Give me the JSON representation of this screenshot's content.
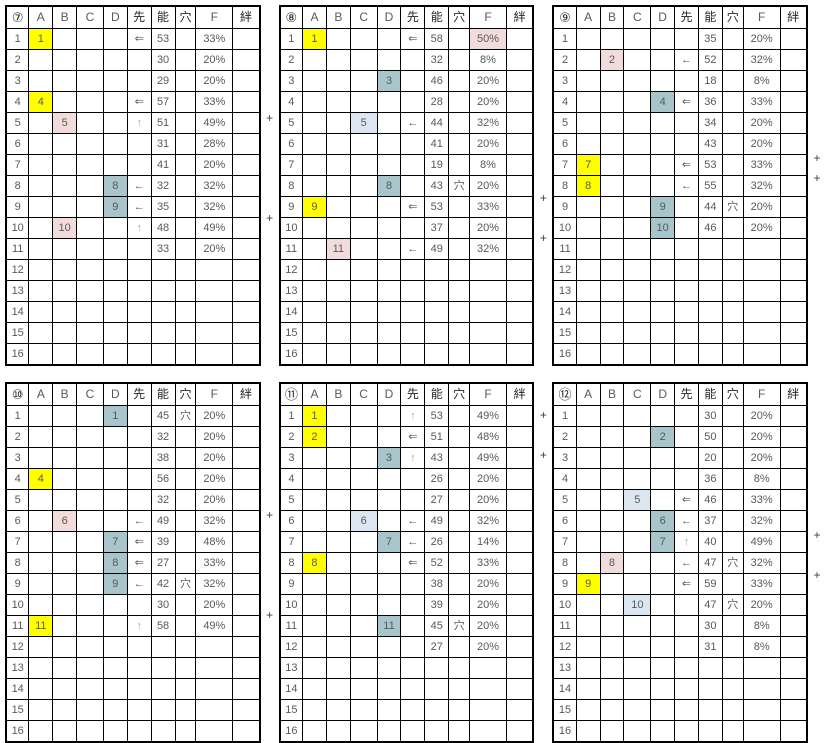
{
  "plus_label": "+",
  "column_headers": [
    "A",
    "B",
    "C",
    "D",
    "先",
    "能",
    "穴",
    "F",
    "絆"
  ],
  "row_count": 16,
  "colors": {
    "highlight_yellow": "#ffff00",
    "highlight_pink": "#f2dcdb",
    "highlight_teal": "#a7c5ca",
    "highlight_blue": "#dce6f1",
    "arrow_gray": "#a6a6a6",
    "ana_gray": "#808080",
    "text_gray": "#595959",
    "border": "#000000"
  },
  "tables": [
    {
      "label": "⑦",
      "rows": [
        {
          "n": 1,
          "col": "A",
          "val": "1",
          "bg": "yellow",
          "sen": "⇐",
          "nou": "53",
          "f": "33%"
        },
        {
          "n": 2,
          "nou": "30",
          "f": "20%"
        },
        {
          "n": 3,
          "nou": "29",
          "f": "20%"
        },
        {
          "n": 4,
          "col": "A",
          "val": "4",
          "bg": "yellow",
          "sen": "⇐",
          "nou": "57",
          "f": "33%"
        },
        {
          "n": 5,
          "col": "B",
          "val": "5",
          "bg": "pink",
          "sen": "↑",
          "nou": "51",
          "f": "49%",
          "plus": true
        },
        {
          "n": 6,
          "nou": "31",
          "f": "28%"
        },
        {
          "n": 7,
          "nou": "41",
          "f": "20%"
        },
        {
          "n": 8,
          "col": "D",
          "val": "8",
          "bg": "teal",
          "sen": "←",
          "nou": "32",
          "f": "32%"
        },
        {
          "n": 9,
          "col": "D",
          "val": "9",
          "bg": "teal",
          "sen": "←",
          "nou": "35",
          "f": "32%"
        },
        {
          "n": 10,
          "col": "B",
          "val": "10",
          "bg": "pink",
          "sen": "↑",
          "nou": "48",
          "f": "49%",
          "plus": true
        },
        {
          "n": 11,
          "nou": "33",
          "f": "20%"
        },
        {
          "n": 12
        },
        {
          "n": 13
        },
        {
          "n": 14
        },
        {
          "n": 15
        },
        {
          "n": 16
        }
      ]
    },
    {
      "label": "⑧",
      "rows": [
        {
          "n": 1,
          "col": "A",
          "val": "1",
          "bg": "yellow",
          "sen": "⇐",
          "nou": "58",
          "f": "50%",
          "fbg": "pink"
        },
        {
          "n": 2,
          "nou": "32",
          "f": "8%"
        },
        {
          "n": 3,
          "col": "D",
          "val": "3",
          "bg": "teal",
          "nou": "46",
          "f": "20%"
        },
        {
          "n": 4,
          "nou": "28",
          "f": "20%"
        },
        {
          "n": 5,
          "col": "C",
          "val": "5",
          "bg": "blue",
          "sen": "←",
          "nou": "44",
          "f": "32%"
        },
        {
          "n": 6,
          "nou": "41",
          "f": "20%"
        },
        {
          "n": 7,
          "nou": "19",
          "f": "8%"
        },
        {
          "n": 8,
          "col": "D",
          "val": "8",
          "bg": "teal",
          "nou": "43",
          "ana": "穴",
          "f": "20%"
        },
        {
          "n": 9,
          "col": "A",
          "val": "9",
          "bg": "yellow",
          "sen": "⇐",
          "nou": "53",
          "f": "33%",
          "plus": true
        },
        {
          "n": 10,
          "nou": "37",
          "f": "20%"
        },
        {
          "n": 11,
          "col": "B",
          "val": "11",
          "bg": "pink",
          "sen": "←",
          "nou": "49",
          "f": "32%",
          "plus": true
        },
        {
          "n": 12
        },
        {
          "n": 13
        },
        {
          "n": 14
        },
        {
          "n": 15
        },
        {
          "n": 16
        }
      ]
    },
    {
      "label": "⑨",
      "rows": [
        {
          "n": 1,
          "nou": "35",
          "f": "20%"
        },
        {
          "n": 2,
          "col": "B",
          "val": "2",
          "bg": "pink",
          "sen": "←",
          "nou": "52",
          "f": "32%"
        },
        {
          "n": 3,
          "nou": "18",
          "f": "8%"
        },
        {
          "n": 4,
          "col": "D",
          "val": "4",
          "bg": "teal",
          "sen": "⇐",
          "nou": "36",
          "f": "33%"
        },
        {
          "n": 5,
          "nou": "34",
          "f": "20%"
        },
        {
          "n": 6,
          "nou": "43",
          "f": "20%"
        },
        {
          "n": 7,
          "col": "A",
          "val": "7",
          "bg": "yellow",
          "sen": "⇐",
          "nou": "53",
          "f": "33%",
          "plus": true
        },
        {
          "n": 8,
          "col": "A",
          "val": "8",
          "bg": "yellow",
          "sen": "←",
          "nou": "55",
          "f": "32%",
          "plus": true
        },
        {
          "n": 9,
          "col": "D",
          "val": "9",
          "bg": "teal",
          "nou": "44",
          "ana": "穴",
          "f": "20%"
        },
        {
          "n": 10,
          "col": "D",
          "val": "10",
          "bg": "teal",
          "nou": "46",
          "f": "20%"
        },
        {
          "n": 11
        },
        {
          "n": 12
        },
        {
          "n": 13
        },
        {
          "n": 14
        },
        {
          "n": 15
        },
        {
          "n": 16
        }
      ]
    },
    {
      "label": "⑩",
      "rows": [
        {
          "n": 1,
          "col": "D",
          "val": "1",
          "bg": "teal",
          "nou": "45",
          "ana": "穴",
          "f": "20%"
        },
        {
          "n": 2,
          "nou": "32",
          "f": "20%"
        },
        {
          "n": 3,
          "nou": "38",
          "f": "20%"
        },
        {
          "n": 4,
          "col": "A",
          "val": "4",
          "bg": "yellow",
          "nou": "56",
          "f": "20%"
        },
        {
          "n": 5,
          "nou": "32",
          "f": "20%"
        },
        {
          "n": 6,
          "col": "B",
          "val": "6",
          "bg": "pink",
          "sen": "←",
          "nou": "49",
          "f": "32%",
          "plus": true
        },
        {
          "n": 7,
          "col": "D",
          "val": "7",
          "bg": "teal",
          "sen": "⇐",
          "nou": "39",
          "f": "48%"
        },
        {
          "n": 8,
          "col": "D",
          "val": "8",
          "bg": "teal",
          "sen": "⇐",
          "nou": "27",
          "f": "33%"
        },
        {
          "n": 9,
          "col": "D",
          "val": "9",
          "bg": "teal",
          "sen": "←",
          "nou": "42",
          "ana": "穴",
          "f": "32%"
        },
        {
          "n": 10,
          "nou": "30",
          "f": "20%"
        },
        {
          "n": 11,
          "col": "A",
          "val": "11",
          "bg": "yellow",
          "sen": "↑",
          "nou": "58",
          "f": "49%",
          "plus": true
        },
        {
          "n": 12
        },
        {
          "n": 13
        },
        {
          "n": 14
        },
        {
          "n": 15
        },
        {
          "n": 16
        }
      ]
    },
    {
      "label": "⑪",
      "rows": [
        {
          "n": 1,
          "col": "A",
          "val": "1",
          "bg": "yellow",
          "sen": "↑",
          "nou": "53",
          "f": "49%",
          "plus": true
        },
        {
          "n": 2,
          "col": "A",
          "val": "2",
          "bg": "yellow",
          "sen": "⇐",
          "nou": "51",
          "f": "48%"
        },
        {
          "n": 3,
          "col": "D",
          "val": "3",
          "bg": "teal",
          "sen": "↑",
          "nou": "43",
          "f": "49%",
          "plus": true
        },
        {
          "n": 4,
          "nou": "26",
          "f": "20%"
        },
        {
          "n": 5,
          "nou": "27",
          "f": "20%"
        },
        {
          "n": 6,
          "col": "C",
          "val": "6",
          "bg": "blue",
          "sen": "←",
          "nou": "49",
          "f": "32%"
        },
        {
          "n": 7,
          "col": "D",
          "val": "7",
          "bg": "teal",
          "sen": "←",
          "nou": "26",
          "f": "14%"
        },
        {
          "n": 8,
          "col": "A",
          "val": "8",
          "bg": "yellow",
          "sen": "⇐",
          "nou": "52",
          "f": "33%"
        },
        {
          "n": 9,
          "nou": "38",
          "f": "20%"
        },
        {
          "n": 10,
          "nou": "39",
          "f": "20%"
        },
        {
          "n": 11,
          "col": "D",
          "val": "11",
          "bg": "teal",
          "nou": "45",
          "ana": "穴",
          "f": "20%"
        },
        {
          "n": 12,
          "nou": "27",
          "f": "20%"
        },
        {
          "n": 13
        },
        {
          "n": 14
        },
        {
          "n": 15
        },
        {
          "n": 16
        }
      ]
    },
    {
      "label": "⑫",
      "rows": [
        {
          "n": 1,
          "nou": "30",
          "f": "20%"
        },
        {
          "n": 2,
          "col": "D",
          "val": "2",
          "bg": "teal",
          "nou": "50",
          "f": "20%"
        },
        {
          "n": 3,
          "nou": "20",
          "f": "20%"
        },
        {
          "n": 4,
          "nou": "36",
          "f": "8%"
        },
        {
          "n": 5,
          "col": "C",
          "val": "5",
          "bg": "blue",
          "sen": "⇐",
          "nou": "46",
          "f": "33%"
        },
        {
          "n": 6,
          "col": "D",
          "val": "6",
          "bg": "teal",
          "sen": "←",
          "nou": "37",
          "f": "32%"
        },
        {
          "n": 7,
          "col": "D",
          "val": "7",
          "bg": "teal",
          "sen": "↑",
          "nou": "40",
          "f": "49%",
          "plus": true
        },
        {
          "n": 8,
          "col": "B",
          "val": "8",
          "bg": "pink",
          "sen": "←",
          "nou": "47",
          "ana": "穴",
          "f": "32%"
        },
        {
          "n": 9,
          "col": "A",
          "val": "9",
          "bg": "yellow",
          "sen": "⇐",
          "nou": "59",
          "f": "33%",
          "plus": true
        },
        {
          "n": 10,
          "col": "C",
          "val": "10",
          "bg": "blue",
          "nou": "47",
          "ana": "穴",
          "f": "20%"
        },
        {
          "n": 11,
          "nou": "30",
          "f": "8%"
        },
        {
          "n": 12,
          "nou": "31",
          "f": "8%"
        },
        {
          "n": 13
        },
        {
          "n": 14
        },
        {
          "n": 15
        },
        {
          "n": 16
        }
      ]
    }
  ]
}
